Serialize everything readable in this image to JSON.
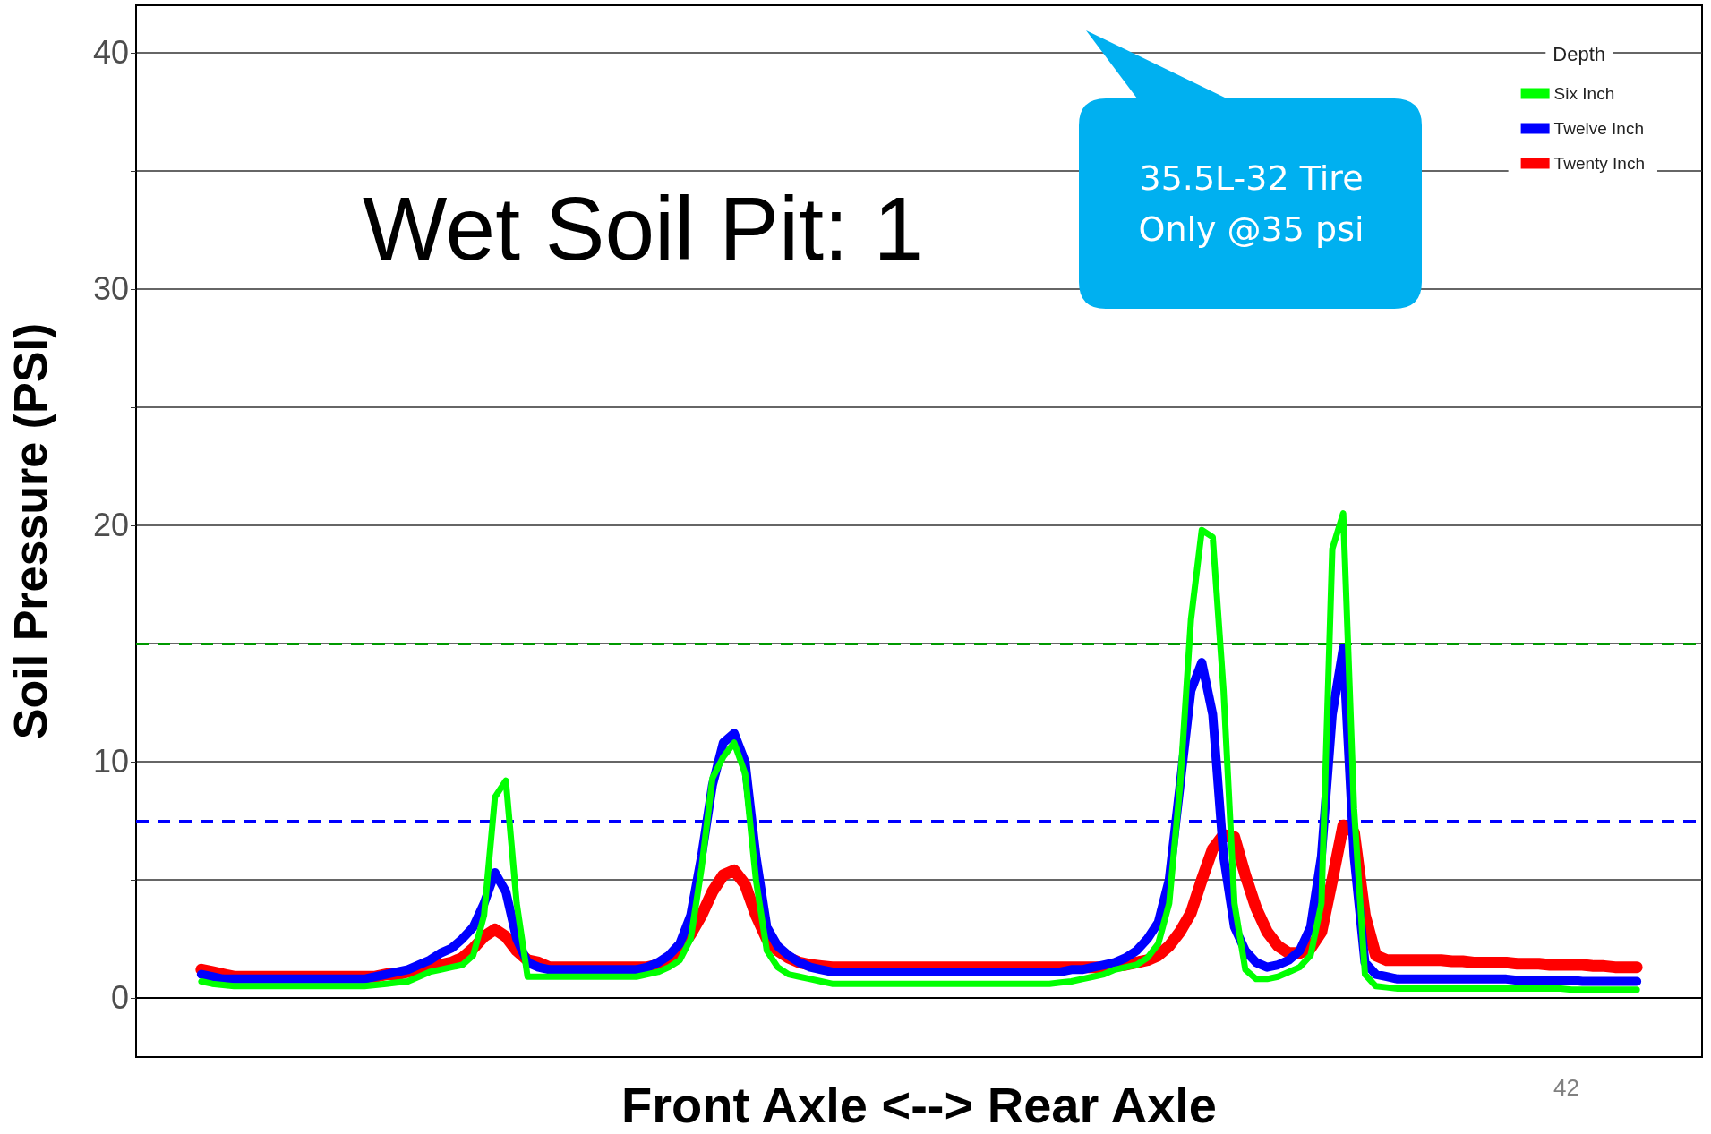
{
  "chart_data": {
    "type": "line",
    "title": "Wet Soil Pit: 1",
    "xlabel": "Front Axle <--> Rear Axle",
    "ylabel": "Soil Pressure (PSI)",
    "legend_title": "Depth",
    "categories": [
      null,
      null,
      null,
      null,
      null,
      null,
      null,
      null,
      null,
      null,
      null,
      null,
      null,
      null,
      null,
      null,
      null,
      null,
      null,
      null,
      null,
      null,
      null,
      null,
      null,
      null,
      null,
      null,
      null,
      null,
      null,
      null,
      null,
      null,
      null,
      null,
      null,
      null,
      null,
      null,
      null,
      null,
      null,
      null,
      null,
      null,
      null,
      null,
      null,
      null,
      null,
      null,
      null,
      null,
      null,
      null,
      null,
      null,
      null,
      null,
      null,
      null,
      null,
      null,
      null,
      null,
      null,
      null,
      null,
      null,
      null,
      null,
      null,
      null,
      null,
      null,
      null,
      null,
      null,
      null,
      null,
      null,
      null,
      null,
      null,
      null,
      null,
      null,
      null,
      null,
      null,
      null,
      null,
      null,
      null,
      null,
      null,
      null,
      null,
      null,
      null,
      null,
      null,
      null,
      null,
      null,
      null,
      null,
      null,
      null,
      null,
      null,
      null,
      null,
      null,
      null,
      null,
      null,
      null,
      null,
      null,
      null,
      null,
      null,
      null,
      null,
      null,
      null,
      null,
      null,
      null,
      null,
      null,
      null,
      null,
      null,
      null,
      null,
      null,
      null,
      null,
      null,
      null,
      null,
      null
    ],
    "series": [
      {
        "name": "Six Inch",
        "color": "#00ff00",
        "values": [
          null,
          null,
          null,
          null,
          null,
          null,
          0.7,
          0.6,
          0.55,
          0.5,
          0.5,
          0.5,
          0.5,
          0.5,
          0.5,
          0.5,
          0.5,
          0.5,
          0.5,
          0.5,
          0.5,
          0.5,
          0.55,
          0.6,
          0.65,
          0.7,
          0.9,
          1.1,
          1.2,
          1.3,
          1.4,
          1.8,
          3.5,
          8.5,
          9.2,
          4,
          0.9,
          0.9,
          0.9,
          0.9,
          0.9,
          0.9,
          0.9,
          0.9,
          0.9,
          0.9,
          0.9,
          1.0,
          1.1,
          1.3,
          1.6,
          2.5,
          5.5,
          9.3,
          10.2,
          10.8,
          9.5,
          5,
          2,
          1.3,
          1.0,
          0.9,
          0.8,
          0.7,
          0.6,
          0.6,
          0.6,
          0.6,
          0.6,
          0.6,
          0.6,
          0.6,
          0.6,
          0.6,
          0.6,
          0.6,
          0.6,
          0.6,
          0.6,
          0.6,
          0.6,
          0.6,
          0.6,
          0.6,
          0.6,
          0.65,
          0.7,
          0.8,
          0.9,
          1.0,
          1.2,
          1.3,
          1.4,
          1.7,
          2.3,
          4,
          9,
          16,
          19.8,
          19.5,
          13,
          4,
          1.2,
          0.8,
          0.8,
          0.9,
          1.1,
          1.3,
          1.8,
          4,
          19,
          20.5,
          8,
          1,
          0.5,
          0.45,
          0.4,
          0.4,
          0.4,
          0.4,
          0.4,
          0.4,
          0.4,
          0.4,
          0.4,
          0.4,
          0.4,
          0.4,
          0.4,
          0.4,
          0.4,
          0.4,
          0.35,
          0.35,
          0.35,
          0.35,
          0.35,
          0.35,
          0.35,
          null,
          null,
          null,
          null,
          null,
          null
        ]
      },
      {
        "name": "Twelve Inch",
        "color": "#0000ff",
        "values": [
          null,
          null,
          null,
          null,
          null,
          null,
          1.0,
          0.9,
          0.8,
          0.8,
          0.8,
          0.8,
          0.8,
          0.8,
          0.8,
          0.8,
          0.8,
          0.8,
          0.8,
          0.8,
          0.8,
          0.8,
          0.9,
          1.0,
          1.1,
          1.2,
          1.4,
          1.6,
          1.9,
          2.1,
          2.5,
          3,
          4,
          5.3,
          4.5,
          2.5,
          1.5,
          1.3,
          1.2,
          1.2,
          1.2,
          1.2,
          1.2,
          1.2,
          1.2,
          1.2,
          1.2,
          1.3,
          1.5,
          1.8,
          2.3,
          3.5,
          6,
          9,
          10.8,
          11.2,
          10,
          6,
          3,
          2.2,
          1.8,
          1.5,
          1.3,
          1.2,
          1.1,
          1.1,
          1.1,
          1.1,
          1.1,
          1.1,
          1.1,
          1.1,
          1.1,
          1.1,
          1.1,
          1.1,
          1.1,
          1.1,
          1.1,
          1.1,
          1.1,
          1.1,
          1.1,
          1.1,
          1.1,
          1.1,
          1.2,
          1.2,
          1.3,
          1.4,
          1.5,
          1.7,
          2,
          2.5,
          3.2,
          5,
          9,
          13,
          14.2,
          12,
          6,
          3,
          2,
          1.5,
          1.3,
          1.4,
          1.6,
          2,
          3,
          6,
          12,
          14.8,
          6,
          1.5,
          1.0,
          0.9,
          0.8,
          0.8,
          0.8,
          0.8,
          0.8,
          0.8,
          0.8,
          0.8,
          0.8,
          0.8,
          0.8,
          0.75,
          0.75,
          0.75,
          0.75,
          0.75,
          0.75,
          0.7,
          0.7,
          0.7,
          0.7,
          0.7,
          0.7,
          null,
          null,
          null,
          null,
          null,
          null
        ]
      },
      {
        "name": "Twenty Inch",
        "color": "#ff0000",
        "values": [
          null,
          null,
          null,
          null,
          null,
          null,
          1.2,
          1.1,
          1.0,
          0.9,
          0.9,
          0.9,
          0.9,
          0.9,
          0.9,
          0.9,
          0.9,
          0.9,
          0.9,
          0.9,
          0.9,
          0.9,
          0.9,
          1.0,
          1.0,
          1.1,
          1.2,
          1.3,
          1.4,
          1.5,
          1.7,
          2.1,
          2.6,
          2.9,
          2.6,
          2.0,
          1.6,
          1.5,
          1.3,
          1.3,
          1.3,
          1.3,
          1.3,
          1.3,
          1.3,
          1.3,
          1.3,
          1.3,
          1.4,
          1.6,
          2.0,
          2.7,
          3.5,
          4.5,
          5.2,
          5.4,
          4.8,
          3.5,
          2.5,
          2.0,
          1.7,
          1.5,
          1.4,
          1.35,
          1.3,
          1.3,
          1.3,
          1.3,
          1.3,
          1.3,
          1.3,
          1.3,
          1.3,
          1.3,
          1.3,
          1.3,
          1.3,
          1.3,
          1.3,
          1.3,
          1.3,
          1.3,
          1.3,
          1.3,
          1.3,
          1.3,
          1.3,
          1.3,
          1.3,
          1.3,
          1.35,
          1.4,
          1.5,
          1.6,
          1.8,
          2.2,
          2.8,
          3.6,
          5,
          6.3,
          6.9,
          6.8,
          5.2,
          3.8,
          2.8,
          2.2,
          1.9,
          1.9,
          2.1,
          2.8,
          5,
          7.3,
          7.0,
          3.5,
          1.8,
          1.6,
          1.6,
          1.6,
          1.6,
          1.6,
          1.6,
          1.55,
          1.55,
          1.5,
          1.5,
          1.5,
          1.5,
          1.45,
          1.45,
          1.45,
          1.4,
          1.4,
          1.4,
          1.4,
          1.35,
          1.35,
          1.3,
          1.3,
          1.3,
          null,
          null,
          null,
          null,
          null,
          null
        ]
      }
    ],
    "ylim": [
      -2.5,
      42
    ],
    "yticks": [
      0,
      {
        "value": 5,
        "label": null
      },
      10,
      {
        "value": 15,
        "label": null
      },
      20,
      {
        "value": 25,
        "label": null
      },
      30,
      {
        "value": 35,
        "label": null
      },
      40
    ],
    "ref_lines": [
      {
        "axis": "y",
        "value": 15,
        "color": "#009900",
        "line_style": "dashed"
      },
      {
        "axis": "y",
        "value": 7.5,
        "color": "#0000ff",
        "line_style": "dashed"
      }
    ],
    "grid": "y",
    "legend": "top right",
    "tick_labels": "y",
    "marker": "none",
    "line_style": "solid",
    "annotations": [
      "35.5L-32 Tire Only @35 psi",
      "42"
    ]
  }
}
